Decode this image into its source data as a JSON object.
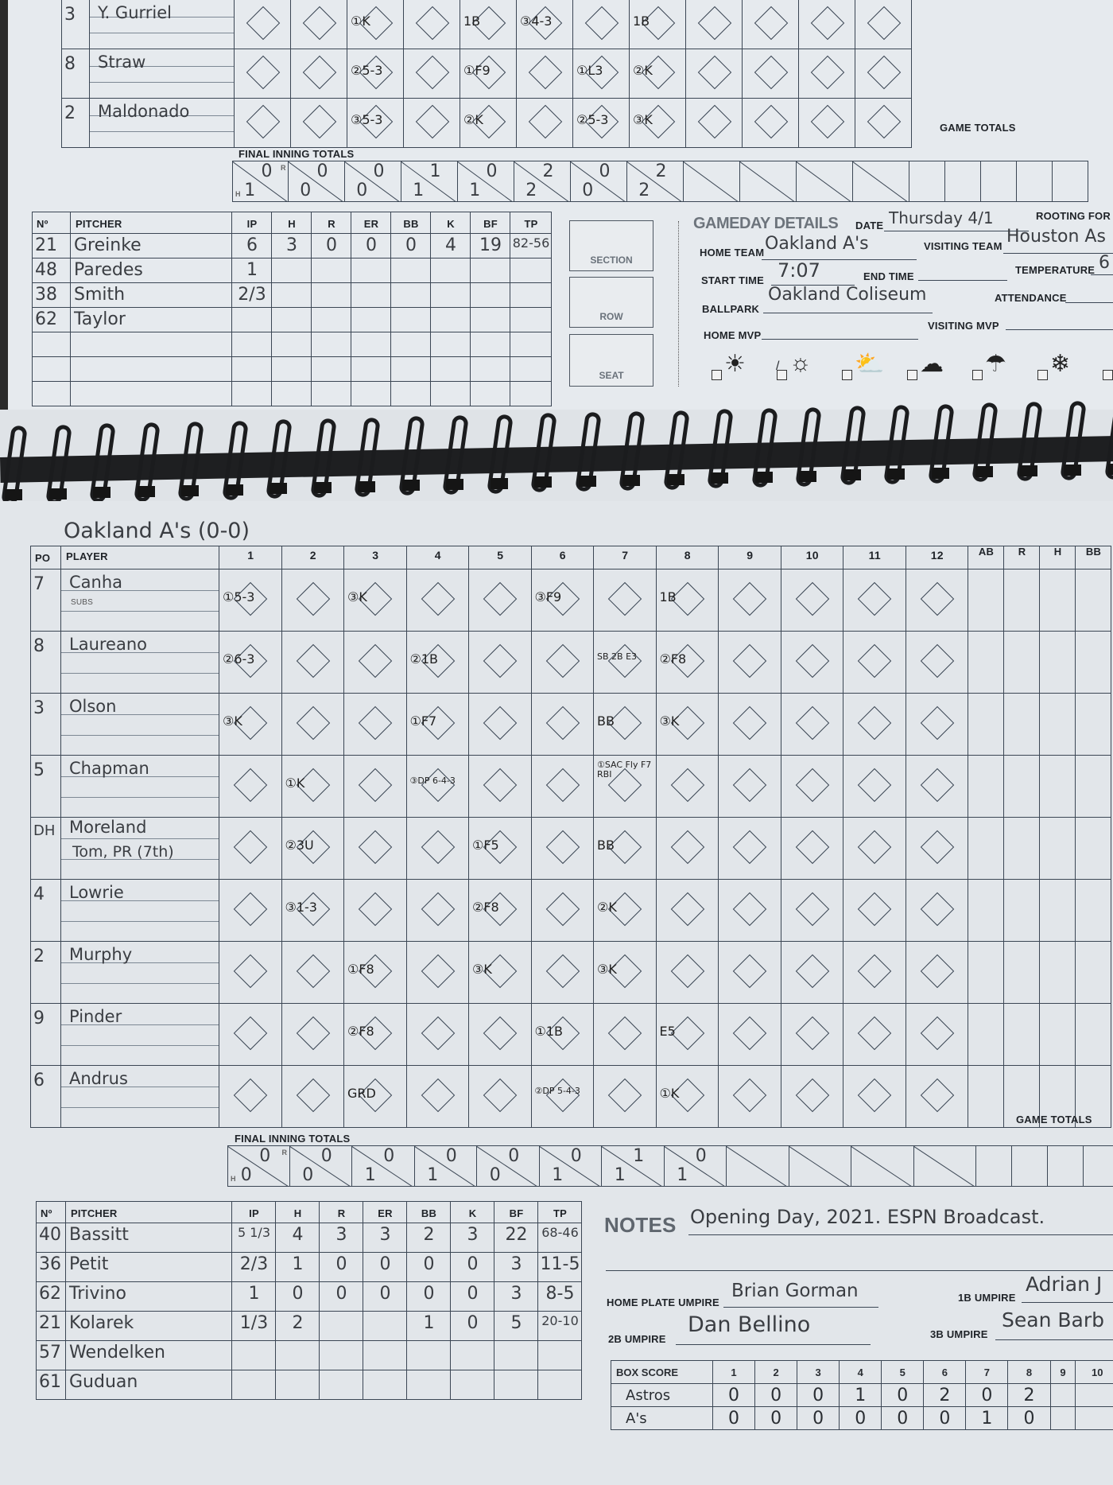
{
  "top_page": {
    "batters": [
      {
        "pos": "3",
        "name": "Y. Gurriel",
        "plays": [
          "",
          "",
          "①K",
          "",
          "1B",
          "③4-3",
          "",
          "1B",
          "",
          "",
          "",
          ""
        ]
      },
      {
        "pos": "8",
        "name": "Straw",
        "plays": [
          "",
          "",
          "②5-3",
          "",
          "①F9",
          "",
          "①L3",
          "②K",
          "",
          "",
          "",
          ""
        ]
      },
      {
        "pos": "2",
        "name": "Maldonado",
        "plays": [
          "",
          "",
          "③5-3",
          "",
          "②K",
          "",
          "②5-3",
          "③K",
          "",
          "",
          "",
          ""
        ]
      }
    ],
    "final_inning_totals_label": "FINAL INNING TOTALS",
    "game_totals_label": "GAME TOTALS",
    "h_label": "H",
    "r_label": "R",
    "inning_totals": [
      {
        "h": "1",
        "r": "0"
      },
      {
        "h": "0",
        "r": "0"
      },
      {
        "h": "0",
        "r": "0"
      },
      {
        "h": "1",
        "r": "1"
      },
      {
        "h": "1",
        "r": "0"
      },
      {
        "h": "2",
        "r": "2"
      },
      {
        "h": "0",
        "r": "0"
      },
      {
        "h": "2",
        "r": "2"
      },
      {
        "h": "",
        "r": ""
      },
      {
        "h": "",
        "r": ""
      },
      {
        "h": "",
        "r": ""
      },
      {
        "h": "",
        "r": ""
      }
    ],
    "pitching": {
      "headers": [
        "Nº",
        "PITCHER",
        "IP",
        "H",
        "R",
        "ER",
        "BB",
        "K",
        "BF",
        "TP"
      ],
      "rows": [
        [
          "21",
          "Greinke",
          "6",
          "3",
          "0",
          "0",
          "0",
          "4",
          "19",
          "82-56"
        ],
        [
          "48",
          "Paredes",
          "1",
          "",
          "",
          "",
          "",
          "",
          "",
          ""
        ],
        [
          "38",
          "Smith",
          "2/3",
          "",
          "",
          "",
          "",
          "",
          "",
          ""
        ],
        [
          "62",
          "Taylor",
          "",
          "",
          "",
          "",
          "",
          "",
          "",
          ""
        ],
        [
          "",
          "",
          "",
          "",
          "",
          "",
          "",
          "",
          "",
          ""
        ],
        [
          "",
          "",
          "",
          "",
          "",
          "",
          "",
          "",
          "",
          ""
        ],
        [
          "",
          "",
          "",
          "",
          "",
          "",
          "",
          "",
          "",
          ""
        ]
      ]
    },
    "seat": {
      "section": "SECTION",
      "row": "ROW",
      "seat": "SEAT"
    },
    "gameday": {
      "title": "GAMEDAY DETAILS",
      "date_label": "DATE",
      "date": "Thursday 4/1",
      "rooting_for_label": "ROOTING FOR",
      "home_team_label": "HOME TEAM",
      "home_team": "Oakland A's",
      "visiting_team_label": "VISITING TEAM",
      "visiting_team": "Houston As",
      "start_time_label": "START TIME",
      "start_time": "7:07",
      "end_time_label": "END TIME",
      "temperature_label": "TEMPERATURE",
      "temperature": "6",
      "ballpark_label": "BALLPARK",
      "ballpark": "Oakland Coliseum",
      "attendance_label": "ATTENDANCE",
      "home_mvp_label": "HOME MVP",
      "visiting_mvp_label": "VISITING MVP",
      "weather": [
        {
          "icon": "sunny-icon",
          "glyph": "☀",
          "checked": false
        },
        {
          "icon": "partly-sunny-icon",
          "glyph": "☼",
          "checked": true
        },
        {
          "icon": "partly-cloudy-icon",
          "glyph": "⛅",
          "checked": false
        },
        {
          "icon": "cloudy-icon",
          "glyph": "☁",
          "checked": false
        },
        {
          "icon": "rain-icon",
          "glyph": "☂",
          "checked": false
        },
        {
          "icon": "snow-icon",
          "glyph": "❄",
          "checked": false
        },
        {
          "icon": "dome-icon",
          "glyph": "◒",
          "checked": false
        }
      ]
    }
  },
  "bottom_page": {
    "team_heading": "Oakland A's (0-0)",
    "header": {
      "po": "PO",
      "player": "PLAYER",
      "subs": "SUBS",
      "innings": [
        "1",
        "2",
        "3",
        "4",
        "5",
        "6",
        "7",
        "8",
        "9",
        "10",
        "11",
        "12"
      ],
      "totals": [
        "AB",
        "R",
        "H",
        "BB"
      ]
    },
    "batters": [
      {
        "pos": "7",
        "name": "Canha",
        "sub": "",
        "plays": [
          "①5-3",
          "",
          "③K",
          "",
          "",
          "③F9",
          "",
          "1B",
          "",
          "",
          "",
          ""
        ]
      },
      {
        "pos": "8",
        "name": "Laureano",
        "sub": "",
        "plays": [
          "②6-3",
          "",
          "",
          "②1B",
          "",
          "",
          "SB 2B E3",
          "②F8",
          "",
          "",
          "",
          ""
        ]
      },
      {
        "pos": "3",
        "name": "Olson",
        "sub": "",
        "plays": [
          "③K",
          "",
          "",
          "①F7",
          "",
          "",
          "BB",
          "③K",
          "",
          "",
          "",
          ""
        ]
      },
      {
        "pos": "5",
        "name": "Chapman",
        "sub": "",
        "plays": [
          "",
          "①K",
          "",
          "③DP 6-4-3",
          "",
          "",
          "①SAC Fly F7 RBI",
          "",
          "",
          "",
          "",
          ""
        ]
      },
      {
        "pos": "DH",
        "name": "Moreland",
        "sub": "Tom, PR (7th)",
        "plays": [
          "",
          "②3U",
          "",
          "",
          "①F5",
          "",
          "BB",
          "",
          "",
          "",
          "",
          ""
        ]
      },
      {
        "pos": "4",
        "name": "Lowrie",
        "sub": "",
        "plays": [
          "",
          "③1-3",
          "",
          "",
          "②F8",
          "",
          "②K",
          "",
          "",
          "",
          "",
          ""
        ]
      },
      {
        "pos": "2",
        "name": "Murphy",
        "sub": "",
        "plays": [
          "",
          "",
          "①F8",
          "",
          "③K",
          "",
          "③K",
          "",
          "",
          "",
          "",
          ""
        ]
      },
      {
        "pos": "9",
        "name": "Pinder",
        "sub": "",
        "plays": [
          "",
          "",
          "②F8",
          "",
          "",
          "①1B",
          "",
          "E5",
          "",
          "",
          "",
          ""
        ]
      },
      {
        "pos": "6",
        "name": "Andrus",
        "sub": "",
        "plays": [
          "",
          "",
          "GRD",
          "",
          "",
          "②DP 5-4-3",
          "",
          "①K",
          "",
          "",
          "",
          ""
        ]
      }
    ],
    "final_inning_totals_label": "FINAL INNING TOTALS",
    "game_totals_label": "GAME TOTALS",
    "h_label": "H",
    "r_label": "R",
    "inning_totals": [
      {
        "h": "0",
        "r": "0"
      },
      {
        "h": "0",
        "r": "0"
      },
      {
        "h": "1",
        "r": "0"
      },
      {
        "h": "1",
        "r": "0"
      },
      {
        "h": "0",
        "r": "0"
      },
      {
        "h": "1",
        "r": "0"
      },
      {
        "h": "1",
        "r": "1"
      },
      {
        "h": "1",
        "r": "0"
      },
      {
        "h": "",
        "r": ""
      },
      {
        "h": "",
        "r": ""
      },
      {
        "h": "",
        "r": ""
      },
      {
        "h": "",
        "r": ""
      }
    ],
    "pitching": {
      "headers": [
        "Nº",
        "PITCHER",
        "IP",
        "H",
        "R",
        "ER",
        "BB",
        "K",
        "BF",
        "TP"
      ],
      "rows": [
        [
          "40",
          "Bassitt",
          "5 1/3",
          "4",
          "3",
          "3",
          "2",
          "3",
          "22",
          "68-46"
        ],
        [
          "36",
          "Petit",
          "2/3",
          "1",
          "0",
          "0",
          "0",
          "0",
          "3",
          "11-5"
        ],
        [
          "62",
          "Trivino",
          "1",
          "0",
          "0",
          "0",
          "0",
          "0",
          "3",
          "8-5"
        ],
        [
          "21",
          "Kolarek",
          "1/3",
          "2",
          "",
          "",
          "1",
          "0",
          "5",
          "20-10"
        ],
        [
          "57",
          "Wendelken",
          "",
          "",
          "",
          "",
          "",
          "",
          "",
          ""
        ],
        [
          "61",
          "Guduan",
          "",
          "",
          "",
          "",
          "",
          "",
          "",
          ""
        ]
      ]
    },
    "notes_label": "NOTES",
    "notes": "Opening Day, 2021. ESPN Broadcast.",
    "umpires": {
      "home_plate_label": "HOME PLATE UMPIRE",
      "home_plate": "Brian Gorman",
      "first_base_label": "1B UMPIRE",
      "first_base": "Adrian J",
      "second_base_label": "2B UMPIRE",
      "second_base": "Dan Bellino",
      "third_base_label": "3B UMPIRE",
      "third_base": "Sean Barb"
    },
    "box_score": {
      "label": "BOX SCORE",
      "innings": [
        "1",
        "2",
        "3",
        "4",
        "5",
        "6",
        "7",
        "8",
        "9",
        "10"
      ],
      "teams": [
        {
          "name": "Astros",
          "runs": [
            "0",
            "0",
            "0",
            "1",
            "0",
            "2",
            "0",
            "2",
            "",
            ""
          ]
        },
        {
          "name": "A's",
          "runs": [
            "0",
            "0",
            "0",
            "0",
            "0",
            "0",
            "1",
            "0",
            "",
            ""
          ]
        }
      ]
    }
  }
}
